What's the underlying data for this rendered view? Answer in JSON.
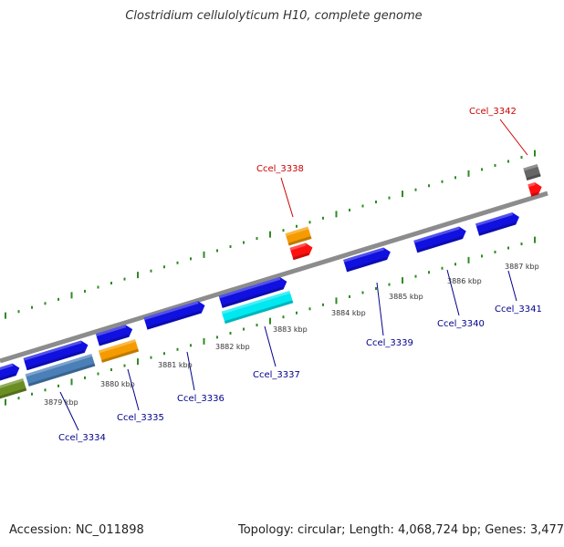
{
  "title": "Clostridium cellulolyticum H10, complete genome",
  "footer": {
    "accession": "Accession: NC_011898",
    "summary": "Topology: circular; Length: 4,068,724 bp; Genes: 3,477"
  },
  "colors": {
    "forward_gene": "#1010e0",
    "reverse_gene_cyan": "#00e8f0",
    "steelblue_gene": "#4a7fb8",
    "olive_gene": "#6b8e23",
    "orange_gene": "#f59b00",
    "red_gene": "#ff1010",
    "gray_gene": "#666666",
    "backbone": "#8c8c8c",
    "tick": "#2e8b22",
    "locus_label": "#00008b",
    "highlight_label": "#cc0000"
  },
  "kbp_labels": [
    "3879 kbp",
    "3880 kbp",
    "3881 kbp",
    "3882 kbp",
    "3883 kbp",
    "3884 kbp",
    "3885 kbp",
    "3886 kbp",
    "3887 kbp"
  ],
  "gene_labels": [
    {
      "text": "Ccel_3334",
      "color": "locus"
    },
    {
      "text": "Ccel_3335",
      "color": "locus"
    },
    {
      "text": "Ccel_3336",
      "color": "locus"
    },
    {
      "text": "Ccel_3337",
      "color": "locus"
    },
    {
      "text": "Ccel_3338",
      "color": "highlight"
    },
    {
      "text": "Ccel_3339",
      "color": "locus"
    },
    {
      "text": "Ccel_3340",
      "color": "locus"
    },
    {
      "text": "Ccel_3341",
      "color": "locus"
    },
    {
      "text": "Ccel_3342",
      "color": "highlight"
    }
  ]
}
